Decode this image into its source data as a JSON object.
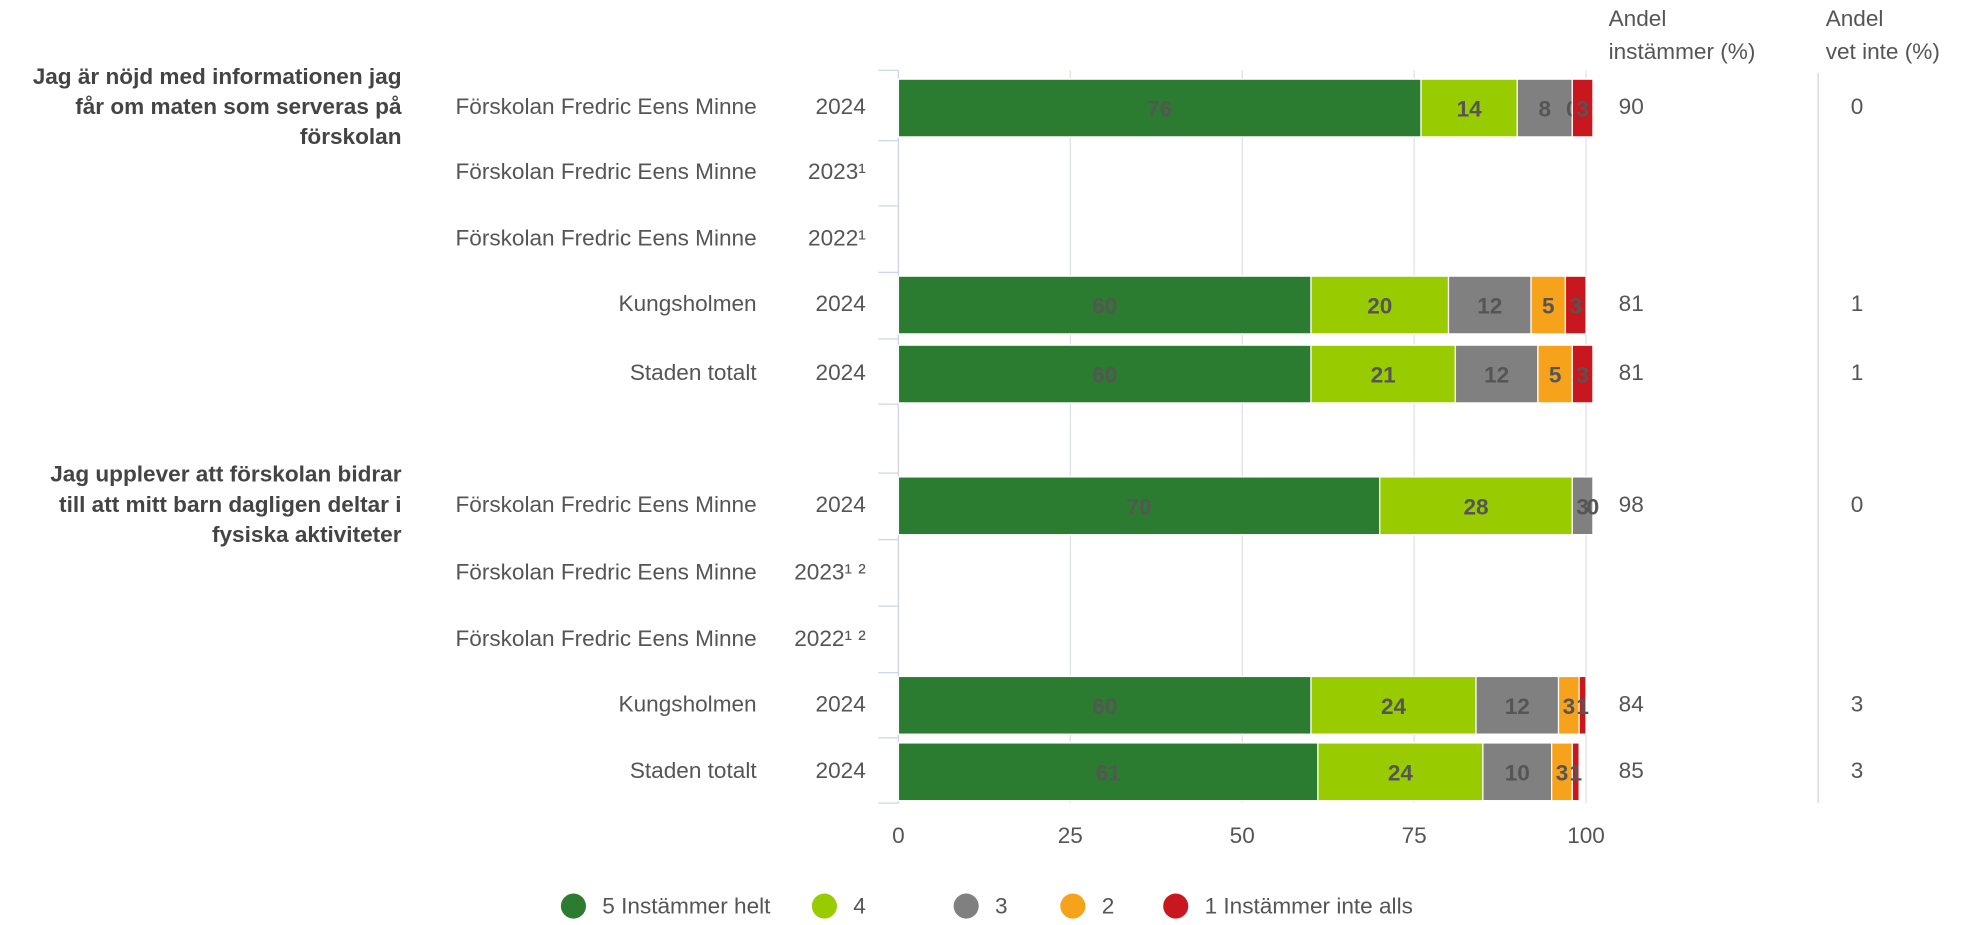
{
  "chart_data": {
    "type": "stacked-bar-horizontal",
    "groups": [
      {
        "label": [
          "Jag är nöjd med informationen jag",
          "får om maten som serveras på",
          "förskolan"
        ],
        "rows": [
          0,
          1,
          2,
          3,
          4
        ]
      },
      {
        "label": [
          "Jag upplever att förskolan bidrar",
          "till att mitt barn dagligen deltar i",
          "fysiska aktiviteter"
        ],
        "rows": [
          5,
          6,
          7,
          8,
          9
        ]
      }
    ],
    "categories": [
      "Förskolan Fredric Eens Minne",
      "Förskolan Fredric Eens Minne",
      "Förskolan Fredric Eens Minne",
      "Kungsholmen",
      "Staden totalt",
      "Förskolan Fredric Eens Minne",
      "Förskolan Fredric Eens Minne",
      "Förskolan Fredric Eens Minne",
      "Kungsholmen",
      "Staden totalt"
    ],
    "years": [
      "2024",
      "2023¹",
      "2022¹",
      "2024",
      "2024",
      "2024",
      "2023¹ ²",
      "2022¹ ²",
      "2024",
      "2024"
    ],
    "series": [
      {
        "name": "5 Instämmer helt",
        "color": "#2b7b30",
        "label_color": "#ffffff",
        "values": [
          76,
          null,
          null,
          60,
          60,
          70,
          null,
          null,
          60,
          61
        ]
      },
      {
        "name": "4",
        "color": "#99cc00",
        "label_color": "#222222",
        "values": [
          14,
          null,
          null,
          20,
          21,
          28,
          null,
          null,
          24,
          24
        ]
      },
      {
        "name": "3",
        "color": "#808080",
        "label_color": "#222222",
        "values": [
          8,
          null,
          null,
          12,
          12,
          3,
          null,
          null,
          12,
          10
        ]
      },
      {
        "name": "2",
        "color": "#f7a21b",
        "label_color": "#222222",
        "values": [
          0,
          null,
          null,
          5,
          5,
          0,
          null,
          null,
          3,
          3
        ]
      },
      {
        "name": "1 Instämmer inte alls",
        "color": "#c8171e",
        "label_color": "#ffffff",
        "values": [
          3,
          null,
          null,
          3,
          3,
          null,
          null,
          null,
          1,
          1
        ]
      }
    ],
    "xlim": [
      0,
      100
    ],
    "xticks": [
      0,
      25,
      50,
      75,
      100
    ],
    "grid": true,
    "legend": "bottom",
    "columns": [
      {
        "header": [
          "Andel",
          "instämmer (%)"
        ],
        "values": [
          90,
          null,
          null,
          81,
          81,
          98,
          null,
          null,
          84,
          85
        ]
      },
      {
        "header": [
          "Andel",
          "vet inte (%)"
        ],
        "values": [
          0,
          null,
          null,
          1,
          1,
          0,
          null,
          null,
          3,
          3
        ]
      }
    ]
  }
}
